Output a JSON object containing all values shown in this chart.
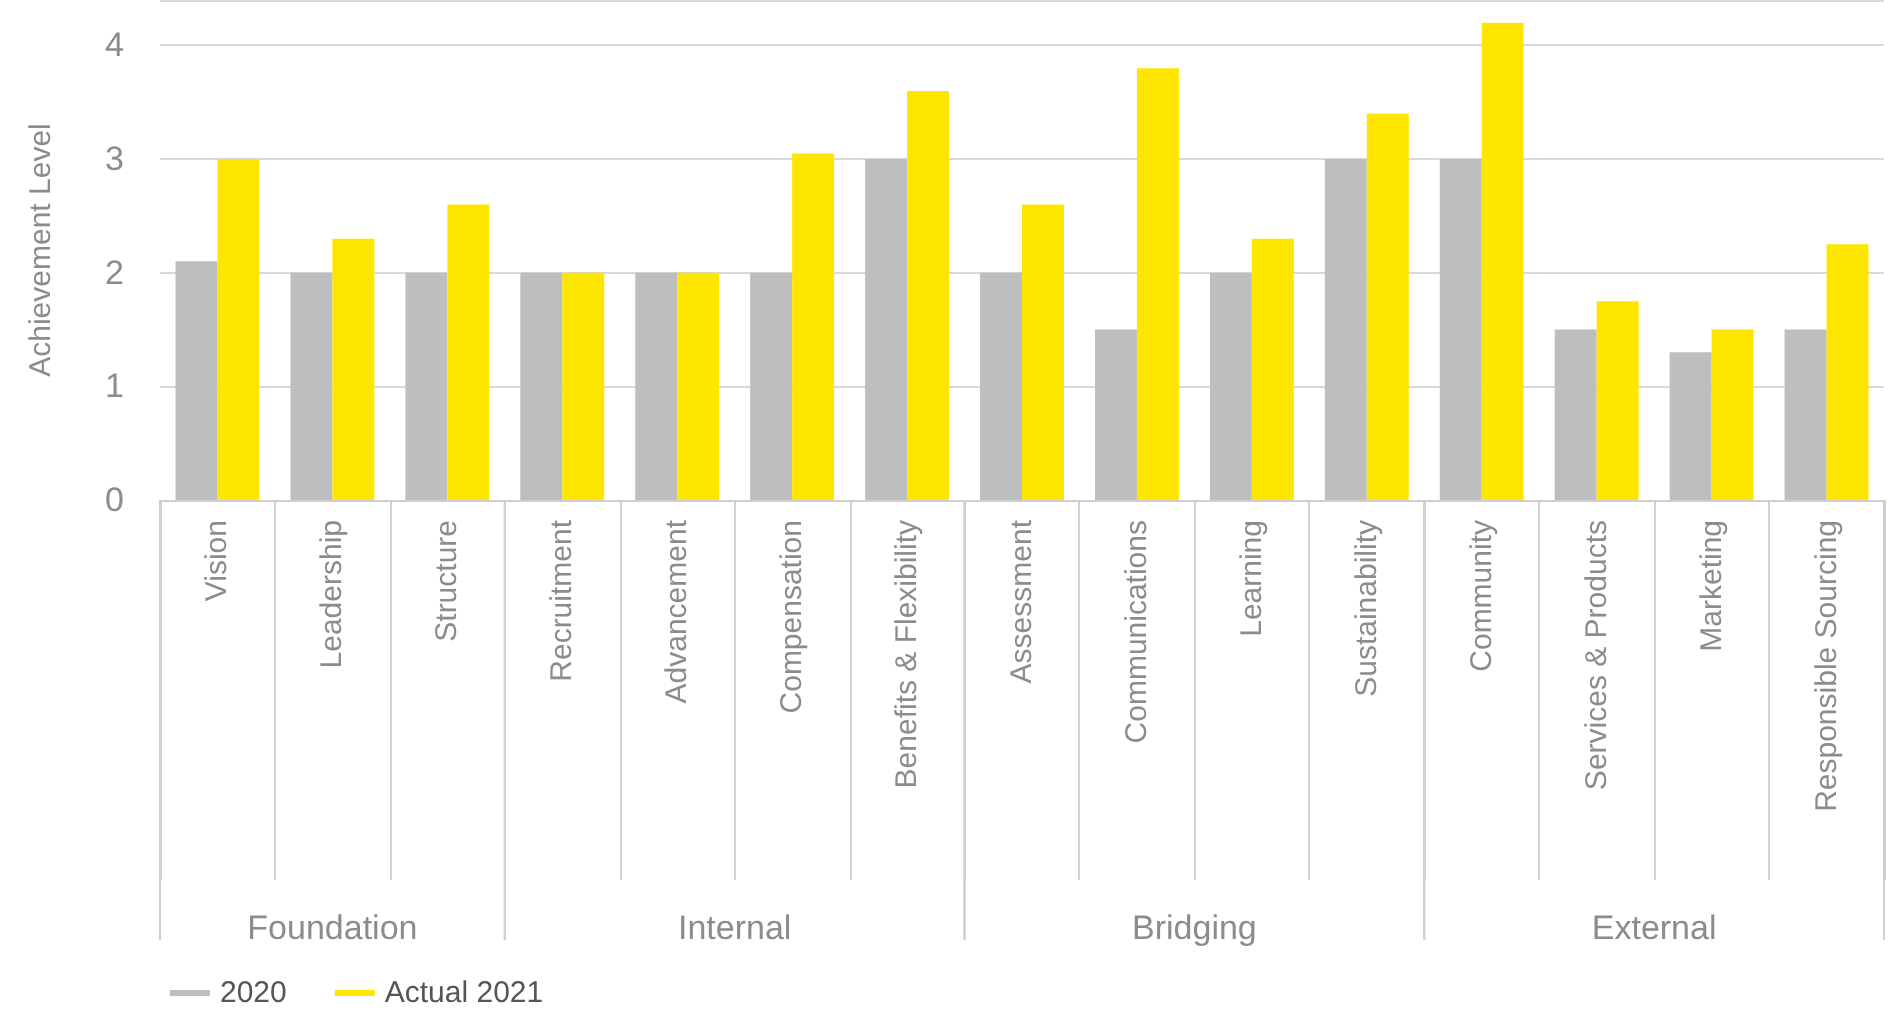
{
  "chart_data": {
    "type": "bar",
    "ylabel": "Achievement Level",
    "categories": [
      "Vision",
      "Leadership",
      "Structure",
      "Recruitment",
      "Advancement",
      "Compensation",
      "Benefits & Flexibility",
      "Assessment",
      "Communications",
      "Learning",
      "Sustainability",
      "Community",
      "Services & Products",
      "Marketing",
      "Responsible Sourcing"
    ],
    "series": [
      {
        "name": "2020",
        "color": "#bcbec0",
        "values": [
          2.1,
          2.0,
          2.0,
          2.0,
          2.0,
          2.0,
          3.0,
          2.0,
          1.5,
          2.0,
          3.0,
          3.0,
          1.5,
          1.3,
          1.5
        ]
      },
      {
        "name": "Actual 2021",
        "color": "#ffe600",
        "values": [
          3.0,
          2.3,
          2.6,
          2.0,
          2.0,
          3.05,
          3.6,
          2.6,
          3.8,
          2.3,
          3.4,
          4.2,
          1.75,
          1.5,
          2.25
        ]
      }
    ],
    "ylim": [
      0,
      4.4
    ],
    "yticks": [
      0,
      1,
      2,
      3,
      4
    ],
    "grid": "y",
    "legend": "bottom left",
    "annotations": [
      "Foundation",
      "Internal",
      "Bridging",
      "External"
    ]
  }
}
